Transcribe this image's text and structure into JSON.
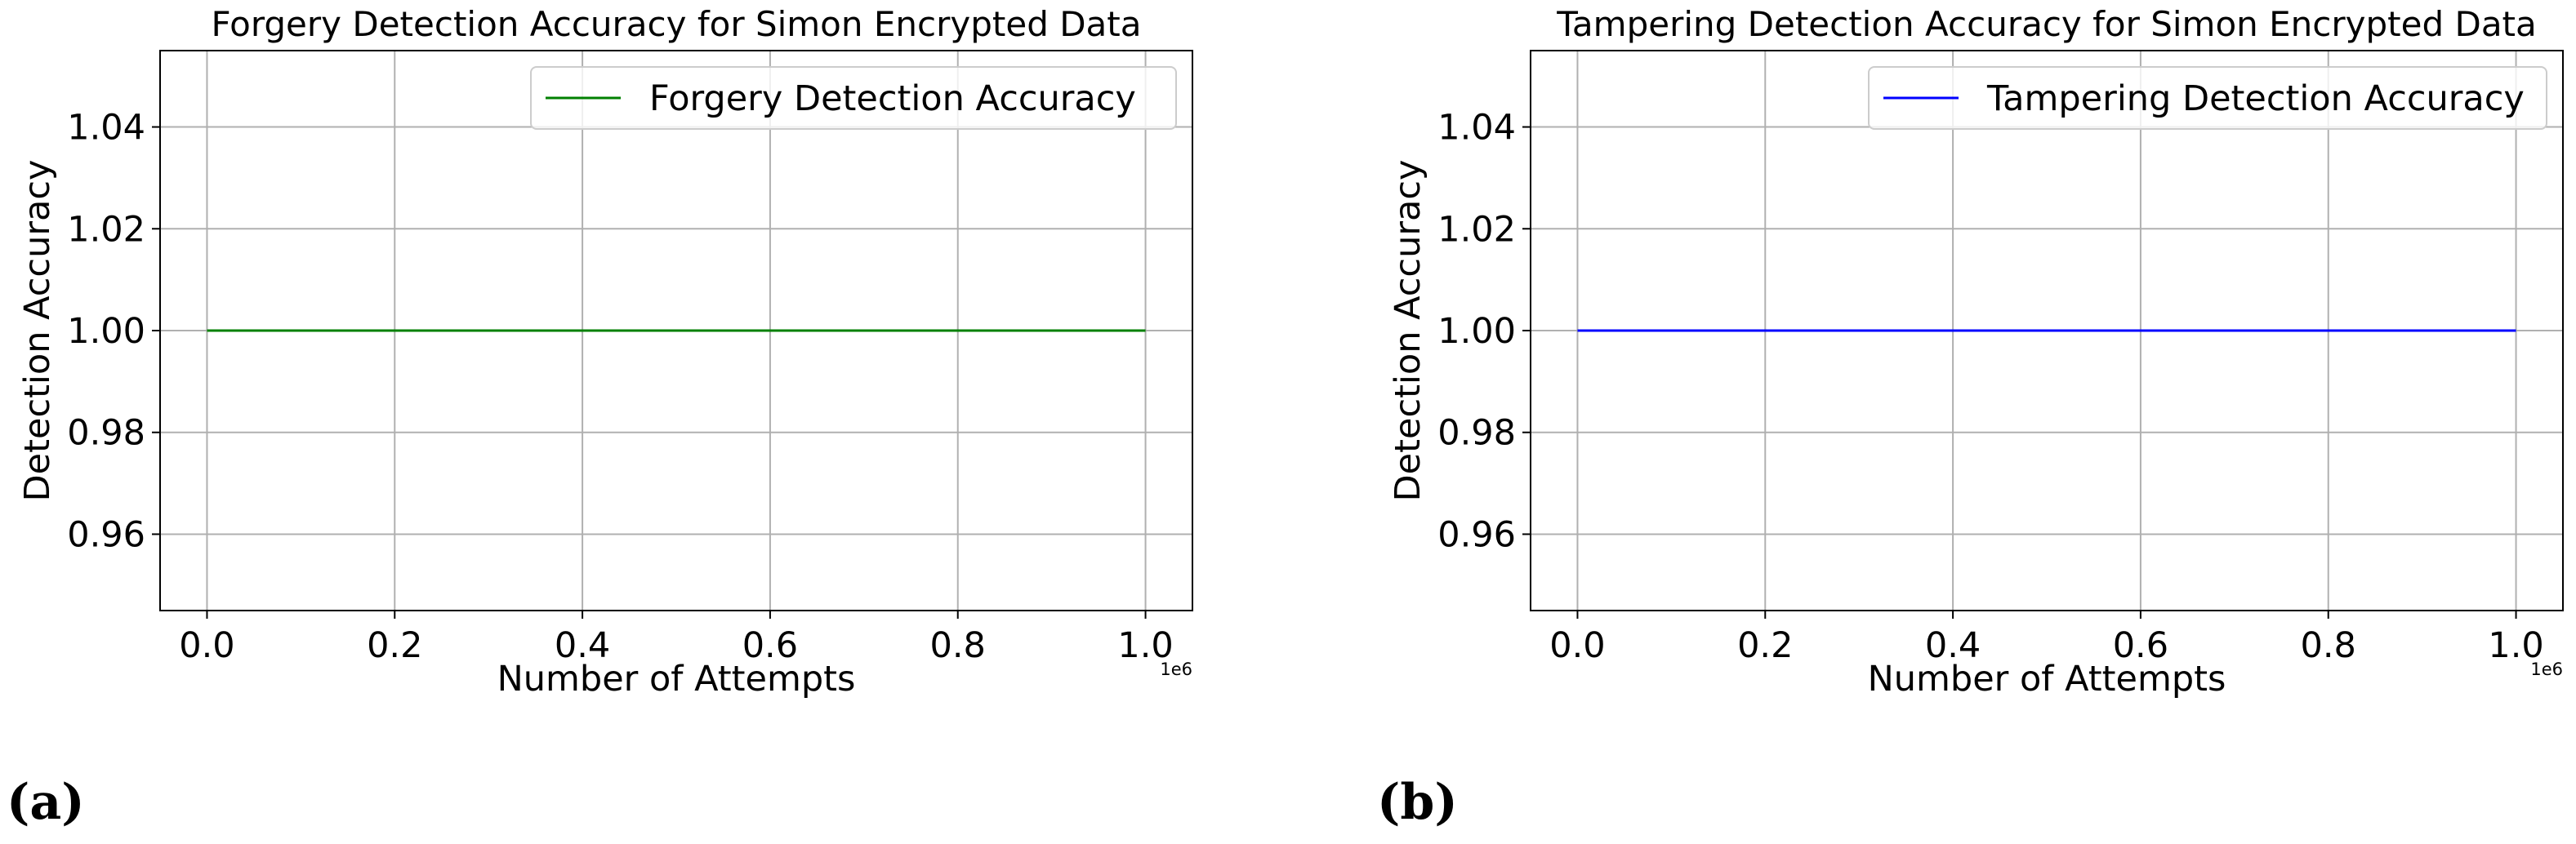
{
  "figure": {
    "panels": [
      {
        "label": "(a)"
      },
      {
        "label": "(b)"
      }
    ]
  },
  "chart_data": [
    {
      "type": "line",
      "title": "Forgery Detection Accuracy for Simon Encrypted Data",
      "xlabel": "Number of Attempts",
      "ylabel": "Detection Accuracy",
      "x_offset_text": "1e6",
      "xlim": [
        -0.05,
        1.05
      ],
      "ylim": [
        0.945,
        1.055
      ],
      "x_ticks": [
        0.0,
        0.2,
        0.4,
        0.6,
        0.8,
        1.0
      ],
      "x_tick_labels": [
        "0.0",
        "0.2",
        "0.4",
        "0.6",
        "0.8",
        "1.0"
      ],
      "y_ticks": [
        0.96,
        0.98,
        1.0,
        1.02,
        1.04
      ],
      "y_tick_labels": [
        "0.96",
        "0.98",
        "1.00",
        "1.02",
        "1.04"
      ],
      "grid": true,
      "legend_position": "top-right",
      "series": [
        {
          "name": "Forgery Detection Accuracy",
          "color": "#008000",
          "x": [
            0.0,
            1.0
          ],
          "y": [
            1.0,
            1.0
          ]
        }
      ]
    },
    {
      "type": "line",
      "title": "Tampering Detection Accuracy for Simon Encrypted Data",
      "xlabel": "Number of Attempts",
      "ylabel": "Detection Accuracy",
      "x_offset_text": "1e6",
      "xlim": [
        -0.05,
        1.05
      ],
      "ylim": [
        0.945,
        1.055
      ],
      "x_ticks": [
        0.0,
        0.2,
        0.4,
        0.6,
        0.8,
        1.0
      ],
      "x_tick_labels": [
        "0.0",
        "0.2",
        "0.4",
        "0.6",
        "0.8",
        "1.0"
      ],
      "y_ticks": [
        0.96,
        0.98,
        1.0,
        1.02,
        1.04
      ],
      "y_tick_labels": [
        "0.96",
        "0.98",
        "1.00",
        "1.02",
        "1.04"
      ],
      "grid": true,
      "legend_position": "top-right",
      "series": [
        {
          "name": "Tampering Detection Accuracy",
          "color": "#0000ff",
          "x": [
            0.0,
            1.0
          ],
          "y": [
            1.0,
            1.0
          ]
        }
      ]
    }
  ]
}
